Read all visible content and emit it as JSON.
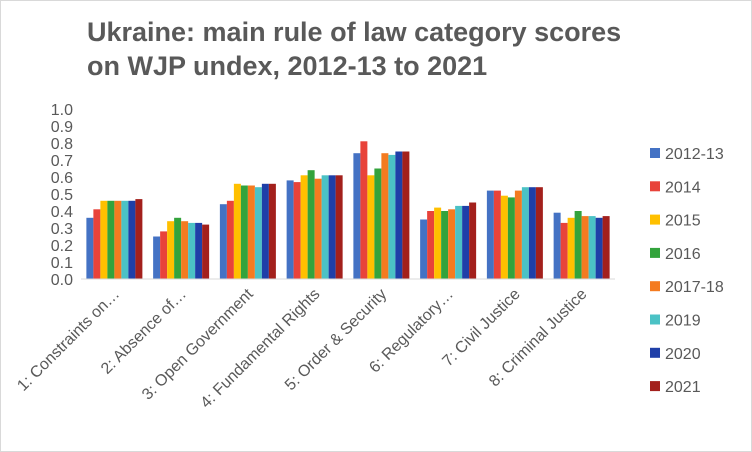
{
  "chart_data": {
    "type": "bar",
    "title_line1": "Ukraine: main rule of law category scores",
    "title_line2": "on WJP undex, 2012-13 to 2021",
    "categories": [
      "1: Constraints on…",
      "2: Absence of…",
      "3: Open Government",
      "4: Fundamental Rights",
      "5: Order & Security",
      "6: Regulatory…",
      "7: Civil Justice",
      "8: Criminal Justice"
    ],
    "series": [
      {
        "name": "2012-13",
        "color": "#4472c4",
        "values": [
          0.36,
          0.25,
          0.44,
          0.58,
          0.74,
          0.35,
          0.52,
          0.39
        ]
      },
      {
        "name": "2014",
        "color": "#e8433a",
        "values": [
          0.41,
          0.28,
          0.46,
          0.57,
          0.81,
          0.4,
          0.52,
          0.33
        ]
      },
      {
        "name": "2015",
        "color": "#ffc000",
        "values": [
          0.46,
          0.34,
          0.56,
          0.61,
          0.61,
          0.42,
          0.49,
          0.36
        ]
      },
      {
        "name": "2016",
        "color": "#33a33c",
        "values": [
          0.46,
          0.36,
          0.55,
          0.64,
          0.65,
          0.4,
          0.48,
          0.4
        ]
      },
      {
        "name": "2017-18",
        "color": "#f47b20",
        "values": [
          0.46,
          0.34,
          0.55,
          0.59,
          0.74,
          0.41,
          0.52,
          0.37
        ]
      },
      {
        "name": "2019",
        "color": "#4bc2c5",
        "values": [
          0.46,
          0.33,
          0.54,
          0.61,
          0.73,
          0.43,
          0.54,
          0.37
        ]
      },
      {
        "name": "2020",
        "color": "#1f3fa8",
        "values": [
          0.46,
          0.33,
          0.56,
          0.61,
          0.75,
          0.43,
          0.54,
          0.36
        ]
      },
      {
        "name": "2021",
        "color": "#a3201c",
        "values": [
          0.47,
          0.32,
          0.56,
          0.61,
          0.75,
          0.45,
          0.54,
          0.37
        ]
      }
    ],
    "yticks": [
      "0.0",
      "0.1",
      "0.2",
      "0.3",
      "0.4",
      "0.5",
      "0.6",
      "0.7",
      "0.8",
      "0.9",
      "1.0"
    ],
    "ylim": [
      0,
      1
    ],
    "grid": false,
    "legend_position": "right"
  }
}
